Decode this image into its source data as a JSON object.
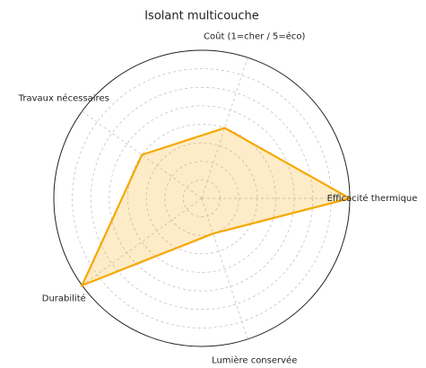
{
  "chart_data": {
    "type": "radar",
    "title": "Isolant multicouche",
    "categories": [
      "Efficacité thermique",
      "Coût (1=cher / 5=éco)",
      "Travaux nécessaires",
      "Durabilité",
      "Lumière conservée"
    ],
    "values": [
      4,
      2,
      2,
      4,
      1
    ],
    "color": "#f5a800",
    "ylim": [
      0,
      4
    ],
    "yticks": [
      0.5,
      1,
      1.5,
      2,
      2.5,
      3,
      3.5,
      4
    ],
    "grid": true
  }
}
